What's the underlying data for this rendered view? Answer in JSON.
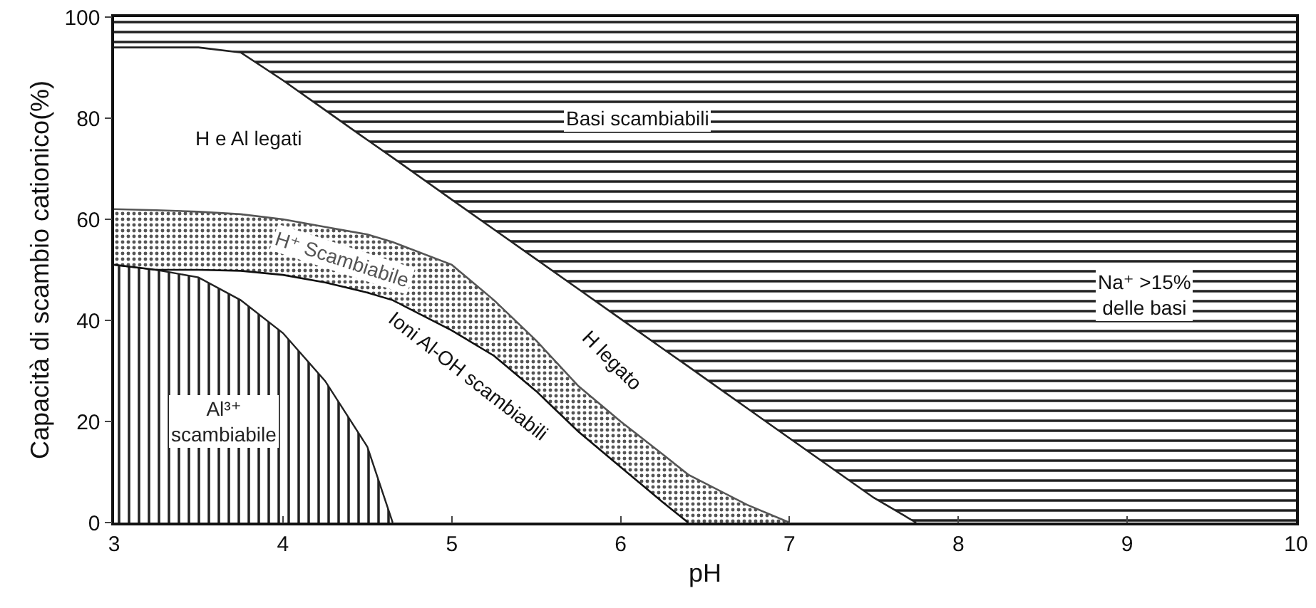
{
  "chart_data": {
    "type": "line",
    "xlabel": "pH",
    "ylabel": "Capacità di scambio cationico(%)",
    "x": [
      3,
      3.25,
      3.5,
      3.75,
      4,
      4.25,
      4.5,
      4.65,
      5,
      5.25,
      5.5,
      5.75,
      6,
      6.25,
      6.4,
      6.75,
      7,
      7.5,
      7.75,
      8,
      9,
      10
    ],
    "series": [
      {
        "type": "area",
        "name": "Al³⁺\nscambiabile",
        "color": "#222222",
        "values": [
          51,
          50,
          48.5,
          44,
          37.5,
          28,
          15,
          0,
          null,
          null,
          null,
          null,
          null,
          null,
          null,
          null,
          null,
          null,
          null,
          null,
          null,
          null
        ]
      },
      {
        "name": "Ioni Al-OH scambiabili",
        "color": "#111111",
        "values": [
          51,
          50,
          50,
          49.8,
          49,
          47.5,
          45.5,
          44,
          38,
          33,
          26,
          18,
          11,
          4,
          0,
          null,
          null,
          null,
          null,
          null,
          null,
          null
        ]
      },
      {
        "name": "H⁺ Scambiabile",
        "color": "#555555",
        "values": [
          62,
          61.8,
          61.5,
          61,
          60,
          58.5,
          57,
          55.5,
          51,
          44,
          36,
          27,
          20,
          13.5,
          9.5,
          3.5,
          0,
          null,
          null,
          null,
          null,
          null
        ],
        "lower": [
          51,
          50,
          50,
          49.8,
          49,
          47.5,
          45.5,
          44,
          38,
          33,
          26,
          18,
          11,
          4,
          0,
          0,
          0,
          0,
          0,
          0,
          0,
          0
        ],
        "upper": [
          62,
          61.8,
          61.5,
          61,
          60,
          58.5,
          57,
          55.5,
          51,
          44,
          36,
          27,
          20,
          13.5,
          9.5,
          3.5,
          0,
          0,
          0,
          0,
          0,
          0
        ]
      },
      {
        "color": "#222222",
        "values": [
          94,
          94,
          94,
          93,
          87.5,
          81.6,
          75.7,
          72.2,
          63.9,
          58,
          52.1,
          46.2,
          40.3,
          34.4,
          30.9,
          22.6,
          16.7,
          4.9,
          0,
          null,
          null,
          null
        ],
        "lower": [
          94,
          94,
          94,
          93,
          87.5,
          81.6,
          75.7,
          72.2,
          63.9,
          58,
          52.1,
          46.2,
          40.3,
          34.4,
          30.9,
          22.6,
          16.7,
          4.9,
          0,
          0,
          0,
          0
        ],
        "upper": [
          100,
          100,
          100,
          100,
          100,
          100,
          100,
          100,
          100,
          100,
          100,
          100,
          100,
          100,
          100,
          100,
          100,
          100,
          100,
          100,
          100,
          100
        ]
      }
    ],
    "xlim": [
      3,
      10
    ],
    "xticks": [
      3,
      4,
      5,
      6,
      7,
      8,
      9,
      10
    ],
    "ylim": [
      0,
      100
    ],
    "yticks": [
      0,
      20,
      40,
      60,
      80,
      100
    ],
    "grid": false,
    "legend": false,
    "annotations": [
      "H e Al legati",
      "Basi scambiabili",
      "H legato",
      "Na⁺ >15%\ndelle basi"
    ]
  }
}
